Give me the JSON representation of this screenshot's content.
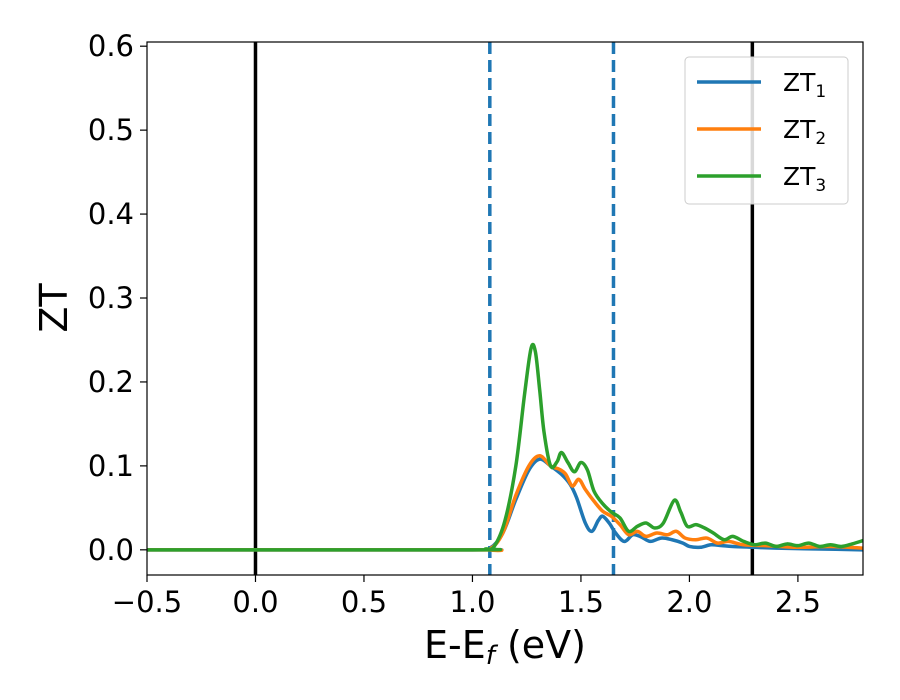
{
  "chart_data": {
    "type": "line",
    "xlabel": "E-E",
    "xlabel_sub": "f",
    "xlabel_unit": " (eV)",
    "ylabel": "ZT",
    "xlim": [
      -0.5,
      2.8
    ],
    "ylim": [
      -0.03,
      0.605
    ],
    "xticks": [
      -0.5,
      0.0,
      0.5,
      1.0,
      1.5,
      2.0,
      2.5
    ],
    "xtick_labels": [
      "−0.5",
      "0.0",
      "0.5",
      "1.0",
      "1.5",
      "2.0",
      "2.5"
    ],
    "yticks": [
      0.0,
      0.1,
      0.2,
      0.3,
      0.4,
      0.5,
      0.6
    ],
    "ytick_labels": [
      "0.0",
      "0.1",
      "0.2",
      "0.3",
      "0.4",
      "0.5",
      "0.6"
    ],
    "grid": false,
    "legend_position": "top-right",
    "vertical_lines": [
      {
        "x": 0.0,
        "style": "solid",
        "color": "#000000"
      },
      {
        "x": 2.29,
        "style": "solid",
        "color": "#000000"
      },
      {
        "x": 1.08,
        "style": "dashed",
        "color": "#1f77b4"
      },
      {
        "x": 1.65,
        "style": "dashed",
        "color": "#1f77b4"
      }
    ],
    "series": [
      {
        "name": "ZT",
        "subscript": "1",
        "color": "#1f77b4",
        "points": [
          [
            -0.5,
            0
          ],
          [
            1.0,
            0
          ],
          [
            1.08,
            0.002
          ],
          [
            1.14,
            0.02
          ],
          [
            1.2,
            0.06
          ],
          [
            1.26,
            0.095
          ],
          [
            1.31,
            0.108
          ],
          [
            1.36,
            0.1
          ],
          [
            1.41,
            0.09
          ],
          [
            1.45,
            0.078
          ],
          [
            1.48,
            0.062
          ],
          [
            1.52,
            0.032
          ],
          [
            1.55,
            0.022
          ],
          [
            1.58,
            0.035
          ],
          [
            1.6,
            0.04
          ],
          [
            1.63,
            0.032
          ],
          [
            1.66,
            0.02
          ],
          [
            1.7,
            0.01
          ],
          [
            1.74,
            0.018
          ],
          [
            1.78,
            0.015
          ],
          [
            1.82,
            0.01
          ],
          [
            1.87,
            0.014
          ],
          [
            1.92,
            0.012
          ],
          [
            1.97,
            0.008
          ],
          [
            2.0,
            0.004
          ],
          [
            2.05,
            0.003
          ],
          [
            2.1,
            0.006
          ],
          [
            2.15,
            0.005
          ],
          [
            2.2,
            0.004
          ],
          [
            2.3,
            0.003
          ],
          [
            2.4,
            0.002
          ],
          [
            2.6,
            0.001
          ],
          [
            2.8,
            0.0
          ]
        ]
      },
      {
        "name": "ZT",
        "subscript": "2",
        "color": "#ff7f0e",
        "points": [
          [
            -0.5,
            0
          ],
          [
            1.0,
            0
          ],
          [
            1.08,
            0.001
          ],
          [
            1.14,
            0.02
          ],
          [
            1.2,
            0.065
          ],
          [
            1.26,
            0.1
          ],
          [
            1.31,
            0.112
          ],
          [
            1.36,
            0.1
          ],
          [
            1.4,
            0.096
          ],
          [
            1.43,
            0.09
          ],
          [
            1.46,
            0.076
          ],
          [
            1.49,
            0.084
          ],
          [
            1.52,
            0.072
          ],
          [
            1.56,
            0.058
          ],
          [
            1.6,
            0.046
          ],
          [
            1.64,
            0.04
          ],
          [
            1.68,
            0.03
          ],
          [
            1.72,
            0.018
          ],
          [
            1.76,
            0.022
          ],
          [
            1.8,
            0.016
          ],
          [
            1.85,
            0.02
          ],
          [
            1.9,
            0.018
          ],
          [
            1.94,
            0.022
          ],
          [
            1.98,
            0.014
          ],
          [
            2.03,
            0.012
          ],
          [
            2.08,
            0.014
          ],
          [
            2.13,
            0.008
          ],
          [
            2.18,
            0.01
          ],
          [
            2.25,
            0.006
          ],
          [
            2.35,
            0.005
          ],
          [
            2.5,
            0.003
          ],
          [
            2.65,
            0.004
          ],
          [
            2.8,
            0.002
          ]
        ]
      },
      {
        "name": "ZT",
        "subscript": "3",
        "color": "#2ca02c",
        "points": [
          [
            -0.5,
            0
          ],
          [
            1.0,
            0
          ],
          [
            1.06,
            0.001
          ],
          [
            1.1,
            0.004
          ],
          [
            1.15,
            0.035
          ],
          [
            1.2,
            0.1
          ],
          [
            1.24,
            0.185
          ],
          [
            1.27,
            0.24
          ],
          [
            1.29,
            0.236
          ],
          [
            1.31,
            0.19
          ],
          [
            1.33,
            0.14
          ],
          [
            1.36,
            0.1
          ],
          [
            1.39,
            0.105
          ],
          [
            1.41,
            0.116
          ],
          [
            1.44,
            0.104
          ],
          [
            1.47,
            0.093
          ],
          [
            1.5,
            0.104
          ],
          [
            1.53,
            0.095
          ],
          [
            1.56,
            0.07
          ],
          [
            1.6,
            0.055
          ],
          [
            1.64,
            0.045
          ],
          [
            1.68,
            0.038
          ],
          [
            1.72,
            0.022
          ],
          [
            1.76,
            0.028
          ],
          [
            1.8,
            0.032
          ],
          [
            1.84,
            0.026
          ],
          [
            1.88,
            0.032
          ],
          [
            1.93,
            0.059
          ],
          [
            1.96,
            0.045
          ],
          [
            1.99,
            0.028
          ],
          [
            2.03,
            0.03
          ],
          [
            2.07,
            0.026
          ],
          [
            2.11,
            0.02
          ],
          [
            2.16,
            0.012
          ],
          [
            2.2,
            0.016
          ],
          [
            2.25,
            0.01
          ],
          [
            2.3,
            0.006
          ],
          [
            2.35,
            0.008
          ],
          [
            2.4,
            0.004
          ],
          [
            2.45,
            0.007
          ],
          [
            2.5,
            0.005
          ],
          [
            2.55,
            0.008
          ],
          [
            2.6,
            0.004
          ],
          [
            2.65,
            0.006
          ],
          [
            2.7,
            0.004
          ],
          [
            2.75,
            0.007
          ],
          [
            2.8,
            0.011
          ]
        ]
      }
    ]
  }
}
